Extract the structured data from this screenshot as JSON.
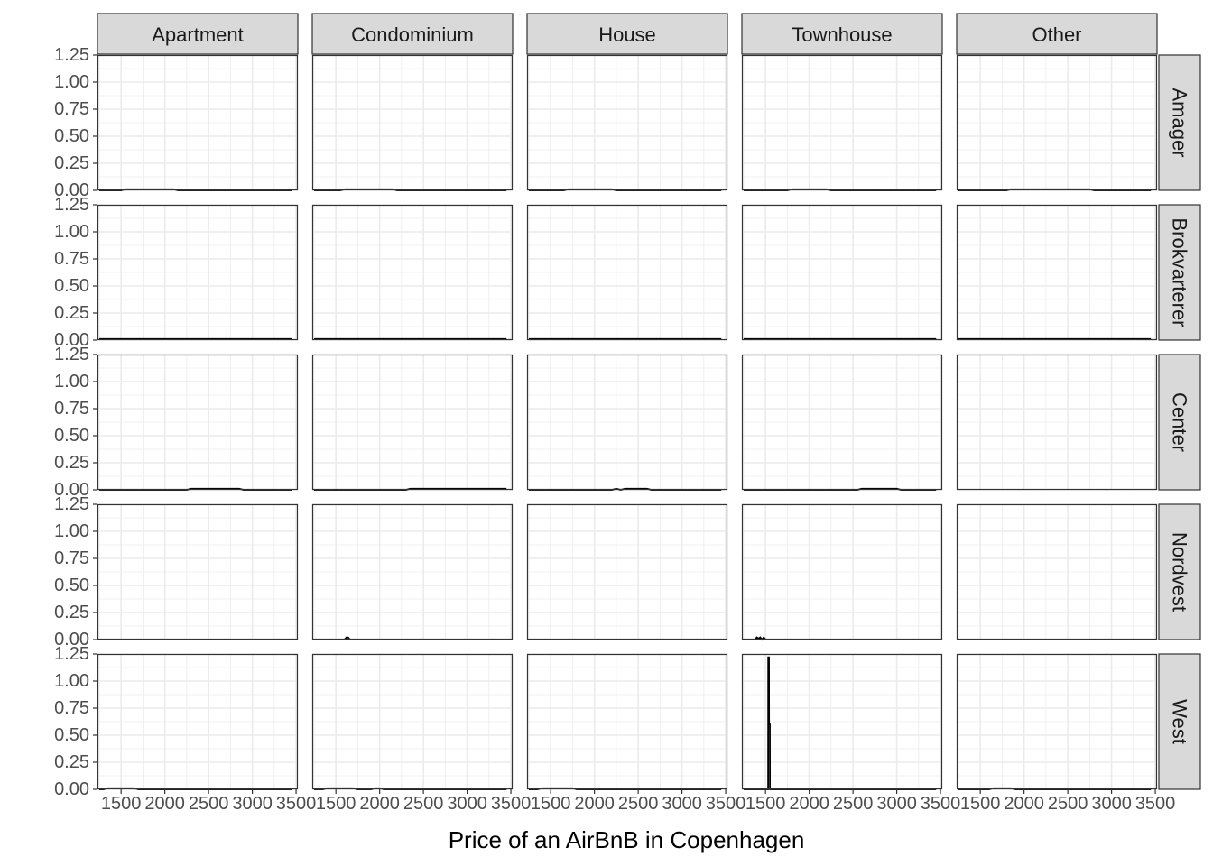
{
  "chart_data": {
    "type": "line",
    "subtype": "density facet grid",
    "title": "",
    "xlabel": "Price of an AirBnB in Copenhagen",
    "ylabel": "",
    "xlim": [
      1230,
      3520
    ],
    "ylim": [
      0,
      1.25
    ],
    "x_ticks": [
      1500,
      2000,
      2500,
      3000,
      3500
    ],
    "x_tick_labels": [
      "1500",
      "2000",
      "2500",
      "3000",
      "3500"
    ],
    "y_ticks": [
      0,
      0.25,
      0.5,
      0.75,
      1.0,
      1.25
    ],
    "y_tick_labels": [
      "0.00",
      "0.25",
      "0.50",
      "0.75",
      "1.00",
      "1.25"
    ],
    "grid": true,
    "columns": [
      "Apartment",
      "Condominium",
      "House",
      "Townhouse",
      "Other"
    ],
    "rows": [
      "Amager",
      "Brokvarterer",
      "Center",
      "Nordvest",
      "West"
    ],
    "colors": {
      "line": "#000000",
      "strip": "#d9d9d9",
      "grid": "#ebebeb",
      "border": "#333333"
    },
    "panels": [
      [
        {
          "x": [
            1250,
            1500,
            1550,
            2100,
            2150,
            3450
          ],
          "y": [
            0,
            0,
            0.01,
            0.01,
            0,
            0
          ]
        },
        {
          "x": [
            1250,
            1550,
            1600,
            2150,
            2200,
            3450
          ],
          "y": [
            0,
            0,
            0.01,
            0.01,
            0,
            0
          ]
        },
        {
          "x": [
            1250,
            1650,
            1700,
            2200,
            2250,
            3450
          ],
          "y": [
            0,
            0,
            0.01,
            0.01,
            0,
            0
          ]
        },
        {
          "x": [
            1250,
            1750,
            1800,
            2200,
            2250,
            3450
          ],
          "y": [
            0,
            0,
            0.01,
            0.01,
            0,
            0
          ]
        },
        {
          "x": [
            1250,
            1800,
            1850,
            2750,
            2800,
            3450
          ],
          "y": [
            0,
            0,
            0.01,
            0.01,
            0,
            0
          ]
        }
      ],
      [
        {
          "x": [
            1250,
            3450
          ],
          "y": [
            0.01,
            0.01
          ]
        },
        {
          "x": [
            1250,
            3450
          ],
          "y": [
            0.01,
            0.01
          ]
        },
        {
          "x": [
            1250,
            3450
          ],
          "y": [
            0.01,
            0.01
          ]
        },
        {
          "x": [
            1250,
            3450
          ],
          "y": [
            0.01,
            0.01
          ]
        },
        {
          "x": [
            1250,
            3450
          ],
          "y": [
            0.01,
            0.01
          ]
        }
      ],
      [
        {
          "x": [
            1250,
            2250,
            2300,
            2850,
            2900,
            3450
          ],
          "y": [
            0,
            0,
            0.01,
            0.01,
            0,
            0
          ]
        },
        {
          "x": [
            1250,
            2300,
            2350,
            3450
          ],
          "y": [
            0,
            0,
            0.01,
            0.01
          ]
        },
        {
          "x": [
            1250,
            2200,
            2250,
            2300,
            2350,
            2600,
            2650,
            3450
          ],
          "y": [
            0,
            0,
            0.01,
            0,
            0.01,
            0.01,
            0,
            0
          ]
        },
        {
          "x": [
            1250,
            2550,
            2600,
            3000,
            3050,
            3450
          ],
          "y": [
            0,
            0,
            0.01,
            0.01,
            0,
            0
          ]
        },
        null
      ],
      [
        {
          "x": [
            1250,
            3450
          ],
          "y": [
            0,
            0
          ]
        },
        {
          "x": [
            1250,
            1600,
            1620,
            1640,
            1660,
            3450
          ],
          "y": [
            0,
            0,
            0.02,
            0.02,
            0,
            0
          ]
        },
        {
          "x": [
            1250,
            3450
          ],
          "y": [
            0,
            0
          ]
        },
        {
          "x": [
            1250,
            1380,
            1400,
            1420,
            1440,
            1460,
            1480,
            1500,
            3450
          ],
          "y": [
            0,
            0,
            0.02,
            0.01,
            0.02,
            0,
            0.02,
            0,
            0
          ]
        },
        {
          "x": [
            1250,
            3450
          ],
          "y": [
            0,
            0
          ]
        }
      ],
      [
        {
          "x": [
            1250,
            1300,
            1350,
            1650,
            1700,
            3450
          ],
          "y": [
            0,
            0,
            0.01,
            0.01,
            0,
            0
          ]
        },
        {
          "x": [
            1250,
            1350,
            1400,
            1700,
            1750,
            1900,
            1950,
            2000,
            2050,
            3450
          ],
          "y": [
            0,
            0,
            0.01,
            0.01,
            0,
            0,
            0.01,
            0.01,
            0,
            0
          ]
        },
        {
          "x": [
            1250,
            1350,
            1400,
            1750,
            1800,
            3450
          ],
          "y": [
            0,
            0,
            0.01,
            0.01,
            0,
            0
          ]
        },
        {
          "x": [
            1250,
            1530,
            1531,
            1540,
            1541,
            1550,
            1551,
            3450
          ],
          "y": [
            0,
            0,
            1.22,
            1.22,
            0.6,
            0.6,
            0,
            0
          ]
        },
        {
          "x": [
            1250,
            1600,
            1650,
            1850,
            1900,
            3450
          ],
          "y": [
            0,
            0,
            0.01,
            0.01,
            0,
            0
          ]
        }
      ]
    ]
  }
}
